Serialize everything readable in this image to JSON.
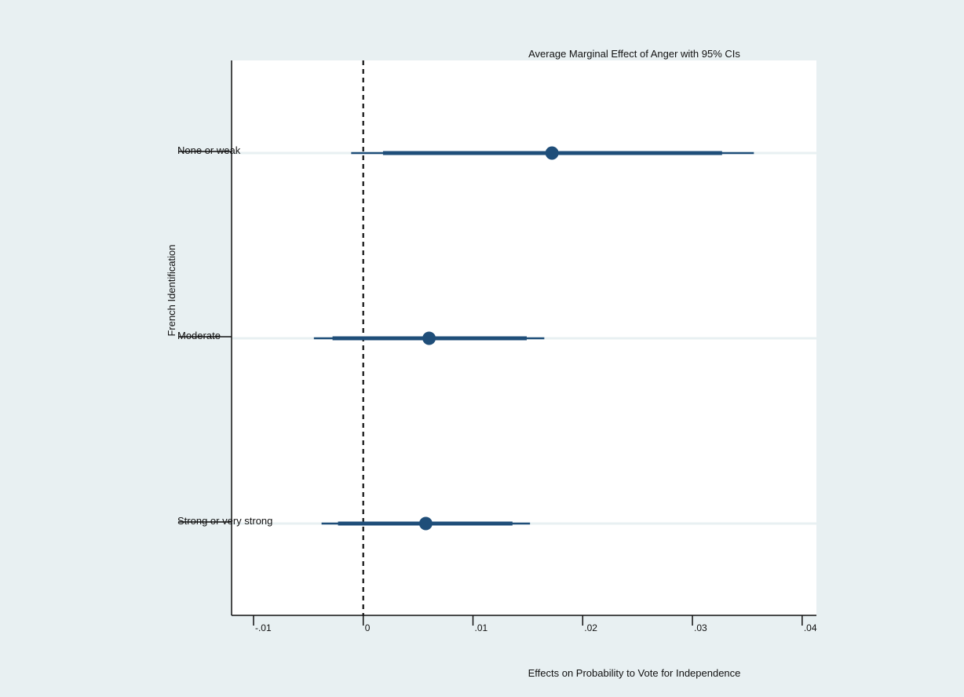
{
  "chart_data": {
    "type": "scatter",
    "title": "Average Marginal Effect of Anger with 95% CIs",
    "xlabel": "Effects on Probability to Vote for Independence",
    "ylabel": "French Identification",
    "xlim": [
      -0.012,
      0.0413
    ],
    "xticks": [
      -0.01,
      0,
      0.01,
      0.02,
      0.03,
      0.04
    ],
    "xtick_labels": [
      "-.01",
      "0",
      ".01",
      ".02",
      ".03",
      ".04"
    ],
    "reference_line_x": 0,
    "categories": [
      "None or weak",
      "Moderate",
      "Strong or very strong"
    ],
    "estimates": [
      0.0172,
      0.006,
      0.0057
    ],
    "ci95": [
      [
        -0.0011,
        0.0356
      ],
      [
        -0.0045,
        0.0165
      ],
      [
        -0.0038,
        0.0152
      ]
    ],
    "ci_inner": [
      [
        0.0018,
        0.0327
      ],
      [
        -0.0028,
        0.0149
      ],
      [
        -0.0023,
        0.0136
      ]
    ],
    "grid": false,
    "colors": {
      "background": "#e8f0f2",
      "plot_background": "#ffffff",
      "marker": "#1f4e79",
      "row_line": "#e8f0f2",
      "axis": "#111111"
    }
  }
}
